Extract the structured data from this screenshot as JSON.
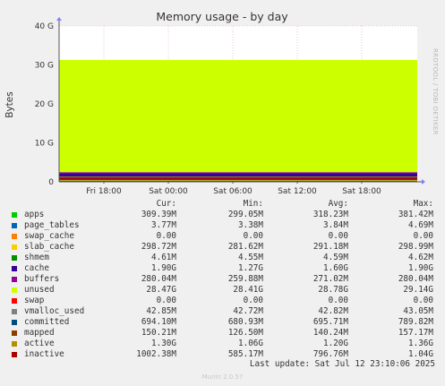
{
  "chart_data": {
    "type": "area",
    "title": "Memory usage - by day",
    "ylabel": "Bytes",
    "xlabel": "",
    "ylim": [
      0,
      40
    ],
    "y_unit": "G",
    "y_ticks": [
      "0",
      "10 G",
      "20 G",
      "30 G",
      "40 G"
    ],
    "x_ticks": [
      "Fri 18:00",
      "Sat 00:00",
      "Sat 06:00",
      "Sat 12:00",
      "Sat 18:00"
    ],
    "side_label": "RRDTOOL / TOBI OETIKER",
    "stacked_series_gb": [
      {
        "name": "apps",
        "color": "#00cc00",
        "value": 0.3
      },
      {
        "name": "page_tables",
        "color": "#0066b3",
        "value": 0.004
      },
      {
        "name": "swap_cache",
        "color": "#ff8000",
        "value": 0.0
      },
      {
        "name": "slab_cache",
        "color": "#ffcc00",
        "value": 0.29
      },
      {
        "name": "shmem",
        "color": "#330099",
        "value": 0.005
      },
      {
        "name": "cache",
        "color": "#330099",
        "value": 1.6
      },
      {
        "name": "buffers",
        "color": "#990099",
        "value": 0.27
      },
      {
        "name": "unused",
        "color": "#ccff00",
        "value": 28.8
      },
      {
        "name": "swap",
        "color": "#ff0000",
        "value": 0.0
      }
    ],
    "lines_gb": [
      {
        "name": "committed",
        "color": "#004d80",
        "value": 0.69
      },
      {
        "name": "mapped",
        "color": "#8c3d00",
        "value": 0.14
      },
      {
        "name": "active",
        "color": "#b3a000",
        "value": 1.2
      },
      {
        "name": "inactive",
        "color": "#aa0000",
        "value": 0.8
      }
    ],
    "columns": [
      "Cur:",
      "Min:",
      "Avg:",
      "Max:"
    ],
    "legend": [
      {
        "name": "apps",
        "color": "#00cc00",
        "cur": "309.39M",
        "min": "299.05M",
        "avg": "318.23M",
        "max": "381.42M"
      },
      {
        "name": "page_tables",
        "color": "#0066b3",
        "cur": "3.77M",
        "min": "3.38M",
        "avg": "3.84M",
        "max": "4.69M"
      },
      {
        "name": "swap_cache",
        "color": "#ff8000",
        "cur": "0.00",
        "min": "0.00",
        "avg": "0.00",
        "max": "0.00"
      },
      {
        "name": "slab_cache",
        "color": "#ffcc00",
        "cur": "298.72M",
        "min": "281.62M",
        "avg": "291.18M",
        "max": "298.99M"
      },
      {
        "name": "shmem",
        "color": "#008f00",
        "cur": "4.61M",
        "min": "4.55M",
        "avg": "4.59M",
        "max": "4.62M"
      },
      {
        "name": "cache",
        "color": "#330099",
        "cur": "1.90G",
        "min": "1.27G",
        "avg": "1.60G",
        "max": "1.90G"
      },
      {
        "name": "buffers",
        "color": "#990099",
        "cur": "280.04M",
        "min": "259.88M",
        "avg": "271.02M",
        "max": "280.04M"
      },
      {
        "name": "unused",
        "color": "#ccff00",
        "cur": "28.47G",
        "min": "28.41G",
        "avg": "28.78G",
        "max": "29.14G"
      },
      {
        "name": "swap",
        "color": "#ff0000",
        "cur": "0.00",
        "min": "0.00",
        "avg": "0.00",
        "max": "0.00"
      },
      {
        "name": "vmalloc_used",
        "color": "#808080",
        "cur": "42.85M",
        "min": "42.72M",
        "avg": "42.82M",
        "max": "43.05M"
      },
      {
        "name": "committed",
        "color": "#004d80",
        "cur": "694.10M",
        "min": "680.93M",
        "avg": "695.71M",
        "max": "789.82M"
      },
      {
        "name": "mapped",
        "color": "#8c3d00",
        "cur": "150.21M",
        "min": "126.50M",
        "avg": "140.24M",
        "max": "157.17M"
      },
      {
        "name": "active",
        "color": "#b38f00",
        "cur": "1.30G",
        "min": "1.06G",
        "avg": "1.20G",
        "max": "1.36G"
      },
      {
        "name": "inactive",
        "color": "#aa0000",
        "cur": "1002.38M",
        "min": "585.17M",
        "avg": "796.76M",
        "max": "1.04G"
      }
    ]
  },
  "footer": {
    "last_update": "Last update: Sat Jul 12 23:10:06 2025",
    "generator": "Munin 2.0.57"
  }
}
